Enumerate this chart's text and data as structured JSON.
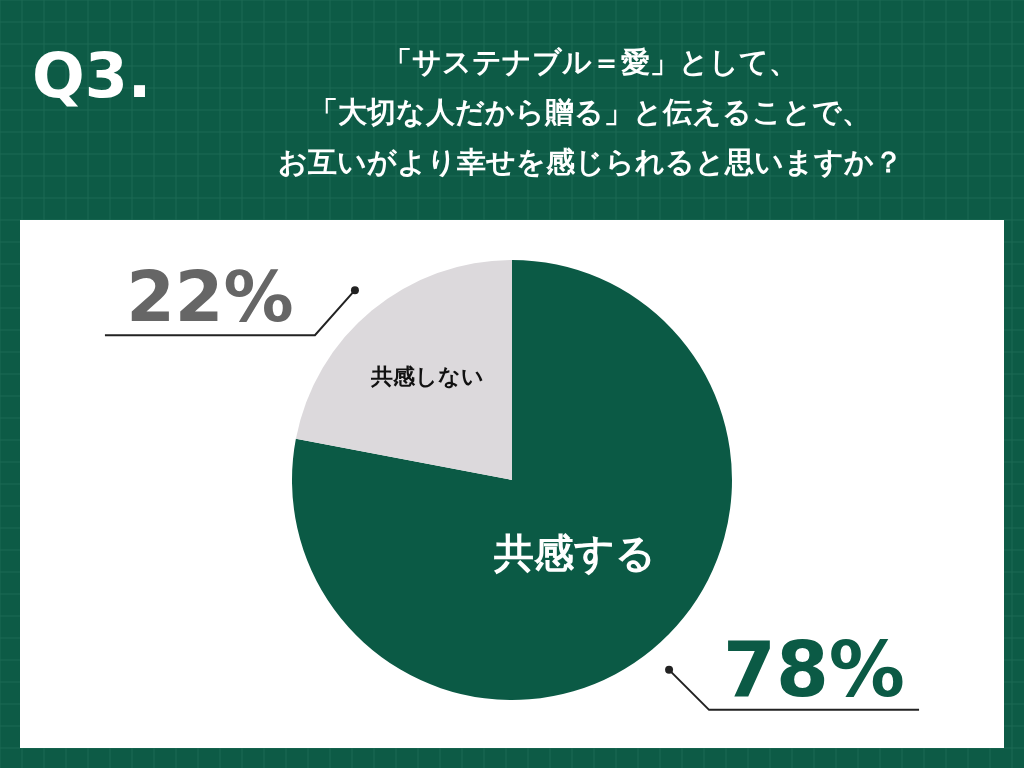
{
  "chart_data": {
    "type": "pie",
    "title": "Q3.",
    "subtitle": "「サステナブル＝愛」として、「大切な人だから贈る」と伝えることで、お互いがより幸せを感じられると思いますか？",
    "categories": [
      "共感する",
      "共感しない"
    ],
    "values": [
      78,
      22
    ],
    "colors": [
      "#0b5a45",
      "#dcd9dc"
    ],
    "value_labels": [
      "78%",
      "22%"
    ]
  }
}
